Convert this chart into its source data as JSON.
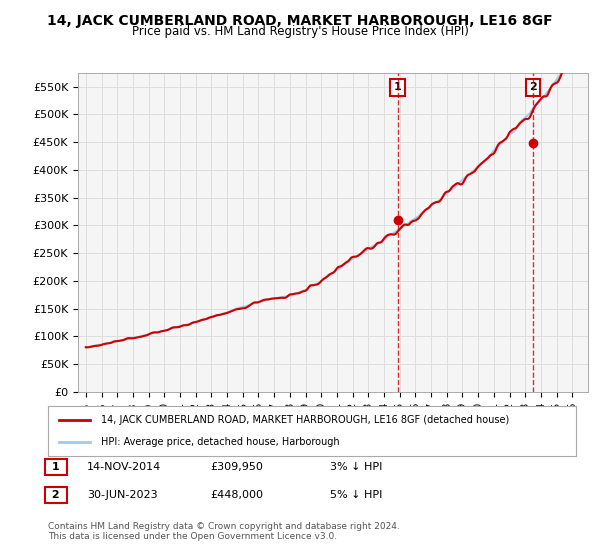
{
  "title": "14, JACK CUMBERLAND ROAD, MARKET HARBOROUGH, LE16 8GF",
  "subtitle": "Price paid vs. HM Land Registry's House Price Index (HPI)",
  "ylabel_ticks": [
    "£0",
    "£50K",
    "£100K",
    "£150K",
    "£200K",
    "£250K",
    "£300K",
    "£350K",
    "£400K",
    "£450K",
    "£500K",
    "£550K"
  ],
  "ytick_vals": [
    0,
    50000,
    100000,
    150000,
    200000,
    250000,
    300000,
    350000,
    400000,
    450000,
    500000,
    550000
  ],
  "ylim": [
    0,
    575000
  ],
  "hpi_color": "#a8c8e8",
  "price_color": "#cc0000",
  "marker_color": "#cc0000",
  "sale1_date_num": 2014.87,
  "sale1_price": 309950,
  "sale1_label": "1",
  "sale2_date_num": 2023.5,
  "sale2_price": 448000,
  "sale2_label": "2",
  "vline_color": "#cc0000",
  "annotation_box_color": "#cc0000",
  "legend_line1": "14, JACK CUMBERLAND ROAD, MARKET HARBOROUGH, LE16 8GF (detached house)",
  "legend_line2": "HPI: Average price, detached house, Harborough",
  "table_row1": [
    "1",
    "14-NOV-2014",
    "£309,950",
    "3% ↓ HPI"
  ],
  "table_row2": [
    "2",
    "30-JUN-2023",
    "£448,000",
    "5% ↓ HPI"
  ],
  "footnote": "Contains HM Land Registry data © Crown copyright and database right 2024.\nThis data is licensed under the Open Government Licence v3.0.",
  "background_color": "#ffffff",
  "plot_bg_color": "#f5f5f5",
  "grid_color": "#dddddd",
  "xmin": 1994.5,
  "xmax": 2027.0
}
